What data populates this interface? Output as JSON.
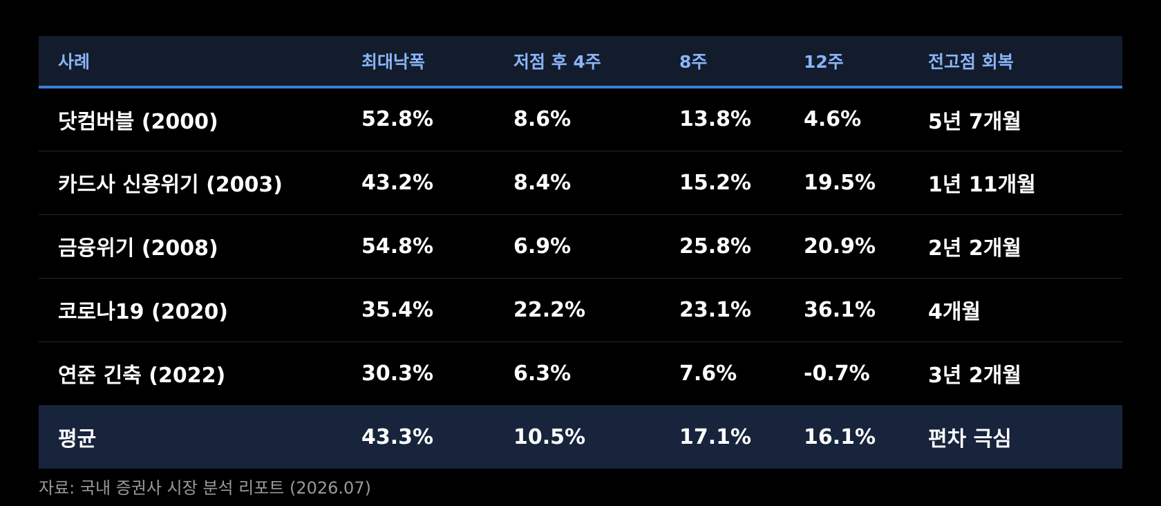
{
  "table": {
    "headers": [
      "사례",
      "최대낙폭",
      "저점 후 4주",
      "8주",
      "12주",
      "전고점 회복"
    ],
    "rows": [
      [
        "닷컴버블 (2000)",
        "52.8%",
        "8.6%",
        "13.8%",
        "4.6%",
        "5년 7개월"
      ],
      [
        "카드사 신용위기 (2003)",
        "43.2%",
        "8.4%",
        "15.2%",
        "19.5%",
        "1년 11개월"
      ],
      [
        "금융위기 (2008)",
        "54.8%",
        "6.9%",
        "25.8%",
        "20.9%",
        "2년 2개월"
      ],
      [
        "코로나19 (2020)",
        "35.4%",
        "22.2%",
        "23.1%",
        "36.1%",
        "4개월"
      ],
      [
        "연준 긴축 (2022)",
        "30.3%",
        "6.3%",
        "7.6%",
        "-0.7%",
        "3년 2개월"
      ]
    ],
    "average": [
      "평균",
      "43.3%",
      "10.5%",
      "17.1%",
      "16.1%",
      "편차 극심"
    ]
  },
  "source_note": "자료: 국내 증권사 시장 분석 리포트 (2026.07)",
  "colors": {
    "background": "#000000",
    "header_bg": "#121c2c",
    "header_text": "#8ab4f8",
    "header_rule": "#3b7ddd",
    "average_bg": "#17243c",
    "row_divider": "#2b2b2b",
    "source_text": "#9a9a9a"
  }
}
